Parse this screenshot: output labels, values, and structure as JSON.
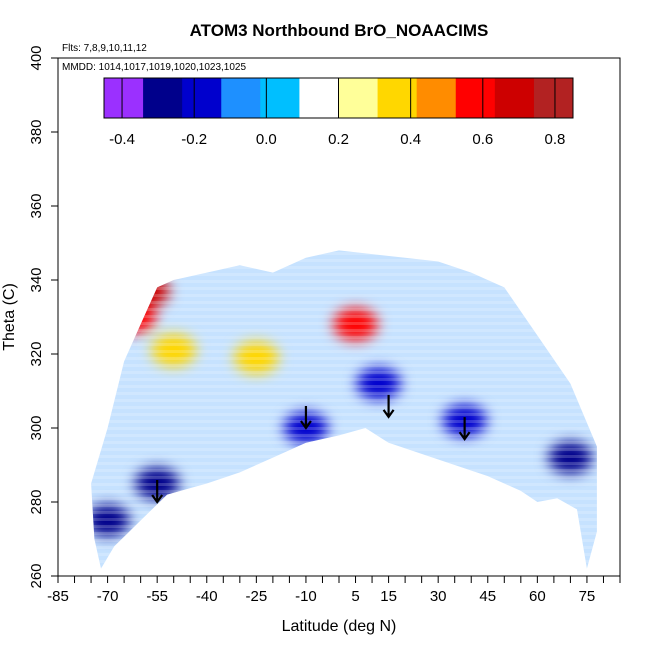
{
  "chart_data": {
    "type": "heatmap",
    "title": "ATOM3 Northbound BrO_NOAACIMS",
    "annotations": {
      "flights": "Flts: 7,8,9,10,11,12",
      "dates": "MMDD: 1014,1017,1019,1020,1023,1025"
    },
    "xlabel": "Latitude (deg N)",
    "ylabel": "Theta (C)",
    "xlim": [
      -85,
      85
    ],
    "ylim": [
      260,
      400
    ],
    "x_ticks": [
      -85,
      -70,
      -55,
      -40,
      -25,
      -10,
      5,
      15,
      30,
      45,
      60,
      75
    ],
    "y_ticks": [
      260,
      280,
      300,
      320,
      340,
      360,
      380,
      400
    ],
    "colorbar": {
      "range": [
        -0.45,
        0.85
      ],
      "ticks": [
        "-0.4",
        "-0.2",
        "0.0",
        "0.2",
        "0.4",
        "0.6",
        "0.8"
      ],
      "colors": [
        "#9b30ff",
        "#00008b",
        "#0000cd",
        "#1e90ff",
        "#00bfff",
        "#ffffff",
        "#ffff99",
        "#ffd700",
        "#ff8c00",
        "#ff0000",
        "#cd0000",
        "#b22222"
      ]
    },
    "envelope": {
      "upper": [
        [
          -75,
          285
        ],
        [
          -70,
          300
        ],
        [
          -65,
          318
        ],
        [
          -60,
          328
        ],
        [
          -55,
          338
        ],
        [
          -50,
          340
        ],
        [
          -40,
          342
        ],
        [
          -30,
          344
        ],
        [
          -20,
          342
        ],
        [
          -10,
          346
        ],
        [
          0,
          348
        ],
        [
          10,
          347
        ],
        [
          20,
          346
        ],
        [
          30,
          345
        ],
        [
          40,
          342
        ],
        [
          50,
          338
        ],
        [
          60,
          325
        ],
        [
          70,
          312
        ],
        [
          78,
          295
        ]
      ],
      "lower": [
        [
          -75,
          285
        ],
        [
          -74,
          270
        ],
        [
          -72,
          262
        ],
        [
          -68,
          268
        ],
        [
          -60,
          275
        ],
        [
          -52,
          282
        ],
        [
          -40,
          285
        ],
        [
          -30,
          288
        ],
        [
          -20,
          292
        ],
        [
          -10,
          296
        ],
        [
          0,
          298
        ],
        [
          8,
          300
        ],
        [
          15,
          296
        ],
        [
          25,
          293
        ],
        [
          35,
          290
        ],
        [
          45,
          287
        ],
        [
          55,
          283
        ],
        [
          60,
          280
        ],
        [
          66,
          281
        ],
        [
          72,
          278
        ],
        [
          75,
          262
        ],
        [
          78,
          272
        ],
        [
          78,
          295
        ]
      ]
    },
    "features": [
      {
        "lat": -62,
        "theta": 330,
        "value": 0.6
      },
      {
        "lat": -58,
        "theta": 337,
        "value": 0.65
      },
      {
        "lat": -50,
        "theta": 321,
        "value": 0.35
      },
      {
        "lat": -25,
        "theta": 319,
        "value": 0.4
      },
      {
        "lat": 5,
        "theta": 328,
        "value": 0.55
      },
      {
        "lat": -70,
        "theta": 275,
        "value": -0.25
      },
      {
        "lat": -55,
        "theta": 285,
        "value": -0.25
      },
      {
        "lat": -10,
        "theta": 300,
        "value": -0.2
      },
      {
        "lat": 12,
        "theta": 312,
        "value": -0.2
      },
      {
        "lat": 38,
        "theta": 302,
        "value": -0.2
      },
      {
        "lat": 70,
        "theta": 292,
        "value": -0.25
      }
    ],
    "arrows": [
      {
        "lat": -55,
        "theta": 280
      },
      {
        "lat": -10,
        "theta": 300
      },
      {
        "lat": 15,
        "theta": 303
      },
      {
        "lat": 38,
        "theta": 297
      }
    ]
  }
}
